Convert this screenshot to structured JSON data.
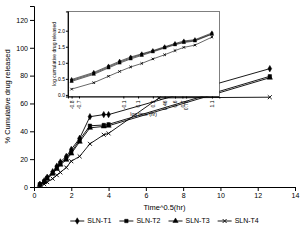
{
  "chart_data": [
    {
      "type": "line",
      "xlabel": "Time^0.5(hr)",
      "ylabel": "% Cumulative drug released",
      "xlim": [
        0,
        14
      ],
      "ylim": [
        0,
        130
      ],
      "xticks": [
        0,
        2,
        4,
        6,
        8,
        10,
        12,
        14
      ],
      "yticks": [
        0,
        20,
        40,
        60,
        80,
        100,
        120
      ],
      "legend": "bottom",
      "series": [
        {
          "name": "SLN-T1",
          "color": "black",
          "marker": "diamond",
          "line_style": "solid",
          "x": [
            0.316,
            0.548,
            0.707,
            1.0,
            1.225,
            1.414,
            1.732,
            2.0,
            2.449,
            3.0,
            3.742,
            4.0,
            12.649
          ],
          "values": [
            2.0,
            4.5,
            7.0,
            11.0,
            15.0,
            18.0,
            22.0,
            27.0,
            35.0,
            50.5,
            52.0,
            52.0,
            85.0
          ]
        },
        {
          "name": "SLN-T2",
          "color": "black",
          "marker": "square",
          "line_style": "solid",
          "x": [
            0.316,
            0.548,
            0.707,
            1.0,
            1.225,
            1.414,
            1.732,
            2.0,
            2.449,
            3.0,
            3.742,
            4.0,
            12.649
          ],
          "values": [
            2.0,
            4.0,
            6.5,
            10.0,
            14.0,
            17.0,
            20.5,
            25.0,
            34.0,
            44.0,
            44.5,
            45.0,
            79.5
          ]
        },
        {
          "name": "SLN-T3",
          "color": "black",
          "marker": "triangle",
          "line_style": "solid",
          "x": [
            0.316,
            0.548,
            0.707,
            1.0,
            1.225,
            1.414,
            1.732,
            2.0,
            2.449,
            3.0,
            3.742,
            4.0,
            12.649
          ],
          "values": [
            1.5,
            3.5,
            6.0,
            9.5,
            13.0,
            16.0,
            19.5,
            24.0,
            32.5,
            42.5,
            43.5,
            44.0,
            78.5
          ]
        },
        {
          "name": "SLN-T4",
          "color": "black",
          "marker": "x",
          "line_style": "solid",
          "x": [
            0.316,
            0.548,
            0.707,
            1.0,
            1.225,
            1.414,
            1.732,
            2.0,
            2.449,
            3.0,
            3.742,
            4.0,
            6.708,
            12.649
          ],
          "values": [
            1.0,
            2.0,
            3.5,
            6.0,
            8.5,
            10.5,
            14.0,
            18.5,
            22.0,
            31.0,
            37.5,
            38.5,
            64.0,
            64.5
          ]
        }
      ]
    },
    {
      "type": "line",
      "xlabel": "log time (hr)",
      "ylabel": "log cumulative drug released",
      "xlim": [
        -0.85,
        1.2
      ],
      "ylim": [
        -0.05,
        2.6
      ],
      "xticks": [
        -0.8,
        -0.7,
        -0.1,
        0.1,
        0.3,
        0.46,
        0.6,
        0.7,
        0.75,
        1.1
      ],
      "yticks": [
        {
          "value": 0,
          "label": "0.0"
        },
        {
          "value": 0.5,
          "label": "0.5"
        },
        {
          "value": 1,
          "label": "1.0"
        },
        {
          "value": 1.5,
          "label": "1.5"
        },
        {
          "value": 2,
          "label": "2.0"
        }
      ],
      "series": [
        {
          "color": "black",
          "marker": "diamond",
          "line_style": "solid",
          "x": [
            -0.8,
            -0.5,
            -0.3,
            -0.15,
            0.0,
            0.15,
            0.3,
            0.46,
            0.6,
            0.72,
            0.87,
            1.1
          ],
          "values": [
            0.48,
            0.7,
            0.9,
            1.05,
            1.18,
            1.28,
            1.38,
            1.5,
            1.6,
            1.68,
            1.72,
            1.93
          ]
        },
        {
          "color": "black",
          "marker": "square",
          "line_style": "solid",
          "x": [
            -0.8,
            -0.5,
            -0.3,
            -0.15,
            0.0,
            0.15,
            0.3,
            0.46,
            0.6,
            0.72,
            0.87,
            1.1
          ],
          "values": [
            0.45,
            0.67,
            0.87,
            1.02,
            1.15,
            1.26,
            1.36,
            1.48,
            1.58,
            1.65,
            1.7,
            1.9
          ]
        },
        {
          "color": "black",
          "marker": "triangle",
          "line_style": "solid",
          "x": [
            -0.8,
            -0.5,
            -0.3,
            -0.15,
            0.0,
            0.15,
            0.3,
            0.46,
            0.6,
            0.72,
            0.87,
            1.1
          ],
          "values": [
            0.42,
            0.64,
            0.84,
            0.99,
            1.12,
            1.23,
            1.34,
            1.46,
            1.56,
            1.63,
            1.68,
            1.89
          ]
        },
        {
          "color": "black",
          "marker": "x",
          "line_style": "solid",
          "x": [
            -0.8,
            -0.5,
            -0.3,
            -0.15,
            0.0,
            0.15,
            0.3,
            0.46,
            0.6,
            0.72,
            0.87,
            1.1
          ],
          "values": [
            0.18,
            0.38,
            0.58,
            0.73,
            0.87,
            0.98,
            1.12,
            1.25,
            1.38,
            1.48,
            1.55,
            1.8
          ]
        }
      ]
    }
  ]
}
